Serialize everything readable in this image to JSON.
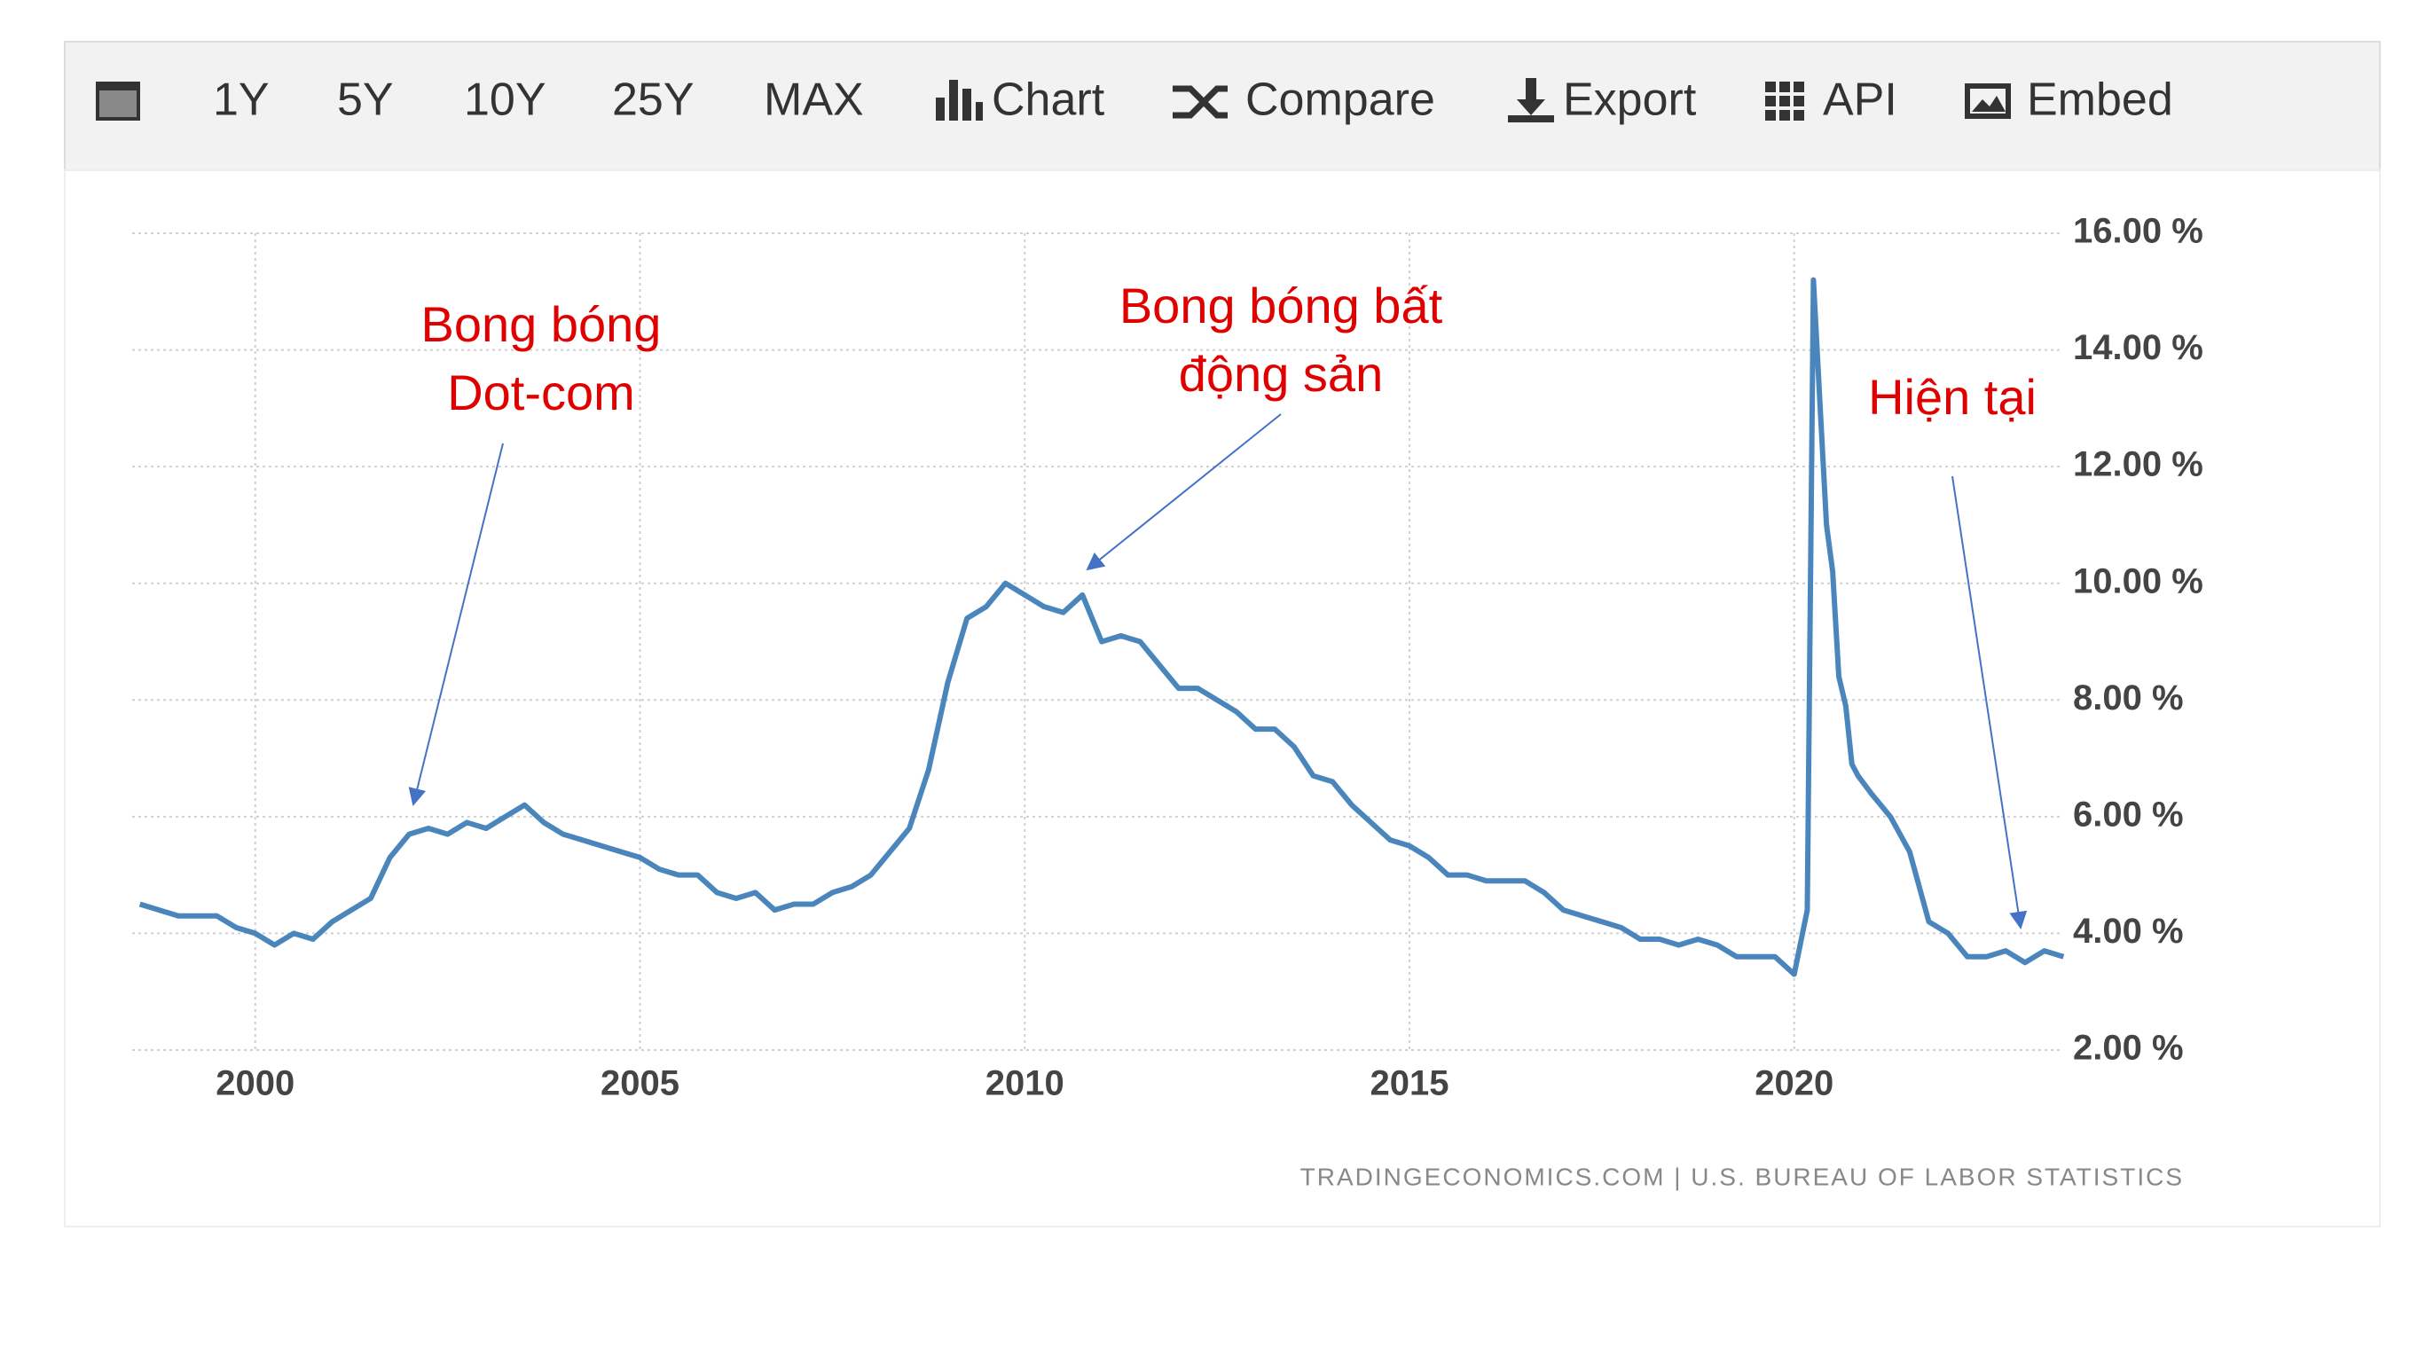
{
  "toolbar": [
    "1Y",
    "5Y",
    "10Y",
    "25Y",
    "MAX",
    "Chart",
    "Compare",
    "Export",
    "API",
    "Embed"
  ],
  "chart_data": {
    "type": "line",
    "source": "TRADINGECONOMICS.COM  |  U.S. BUREAU OF LABOR STATISTICS",
    "annotations": [
      {
        "lines": [
          "Bong bóng",
          "Dot-com"
        ]
      },
      {
        "lines": [
          "Bong bóng bất",
          "động sản"
        ]
      },
      {
        "lines": [
          "Hiện tại"
        ]
      }
    ],
    "x": [
      1998.5,
      1998.75,
      1999,
      1999.25,
      1999.5,
      1999.75,
      2000,
      2000.25,
      2000.5,
      2000.75,
      2001,
      2001.25,
      2001.5,
      2001.75,
      2002,
      2002.25,
      2002.5,
      2002.75,
      2003,
      2003.25,
      2003.5,
      2003.75,
      2004,
      2004.25,
      2004.5,
      2004.75,
      2005,
      2005.25,
      2005.5,
      2005.75,
      2006,
      2006.25,
      2006.5,
      2006.75,
      2007,
      2007.25,
      2007.5,
      2007.75,
      2008,
      2008.25,
      2008.5,
      2008.75,
      2009,
      2009.25,
      2009.5,
      2009.75,
      2010,
      2010.25,
      2010.5,
      2010.75,
      2011,
      2011.25,
      2011.5,
      2011.75,
      2012,
      2012.25,
      2012.5,
      2012.75,
      2013,
      2013.25,
      2013.5,
      2013.75,
      2014,
      2014.25,
      2014.5,
      2014.75,
      2015,
      2015.25,
      2015.5,
      2015.75,
      2016,
      2016.25,
      2016.5,
      2016.75,
      2017,
      2017.25,
      2017.5,
      2017.75,
      2018,
      2018.25,
      2018.5,
      2018.75,
      2019,
      2019.25,
      2019.5,
      2019.75,
      2020,
      2020.17,
      2020.25,
      2020.33,
      2020.42,
      2020.5,
      2020.58,
      2020.67,
      2020.75,
      2020.83,
      2021,
      2021.25,
      2021.5,
      2021.75,
      2022,
      2022.25,
      2022.5,
      2022.75,
      2023,
      2023.25,
      2023.5
    ],
    "series": [
      {
        "color": "#4a86bb",
        "values": [
          4.5,
          4.4,
          4.3,
          4.3,
          4.3,
          4.1,
          4.0,
          3.8,
          4.0,
          3.9,
          4.2,
          4.4,
          4.6,
          5.3,
          5.7,
          5.8,
          5.7,
          5.9,
          5.8,
          6.0,
          6.2,
          5.9,
          5.7,
          5.6,
          5.5,
          5.4,
          5.3,
          5.1,
          5.0,
          5.0,
          4.7,
          4.6,
          4.7,
          4.4,
          4.5,
          4.5,
          4.7,
          4.8,
          5.0,
          5.4,
          5.8,
          6.8,
          8.3,
          9.4,
          9.6,
          10.0,
          9.8,
          9.6,
          9.5,
          9.8,
          9.0,
          9.1,
          9.0,
          8.6,
          8.2,
          8.2,
          8.0,
          7.8,
          7.5,
          7.5,
          7.2,
          6.7,
          6.6,
          6.2,
          5.9,
          5.6,
          5.5,
          5.3,
          5.0,
          5.0,
          4.9,
          4.9,
          4.9,
          4.7,
          4.4,
          4.3,
          4.2,
          4.1,
          3.9,
          3.9,
          3.8,
          3.9,
          3.8,
          3.6,
          3.6,
          3.6,
          3.3,
          4.4,
          15.2,
          13.2,
          11.0,
          10.2,
          8.4,
          7.9,
          6.9,
          6.7,
          6.4,
          6.0,
          5.4,
          4.2,
          4.0,
          3.6,
          3.6,
          3.7,
          3.5,
          3.7,
          3.6
        ]
      }
    ],
    "xlim": [
      1998.4,
      2023.45
    ],
    "xticks": [
      2000,
      2005,
      2010,
      2015,
      2020
    ],
    "ylim": [
      2,
      16
    ],
    "yticks": [
      {
        "value": 2,
        "label": "2.00 %"
      },
      {
        "value": 4,
        "label": "4.00 %"
      },
      {
        "value": 6,
        "label": "6.00 %"
      },
      {
        "value": 8,
        "label": "8.00 %"
      },
      {
        "value": 10,
        "label": "10.00 %"
      },
      {
        "value": 12,
        "label": "12.00 %"
      },
      {
        "value": 14,
        "label": "14.00 %"
      },
      {
        "value": 16,
        "label": "16.00 %"
      }
    ],
    "grid": true
  }
}
